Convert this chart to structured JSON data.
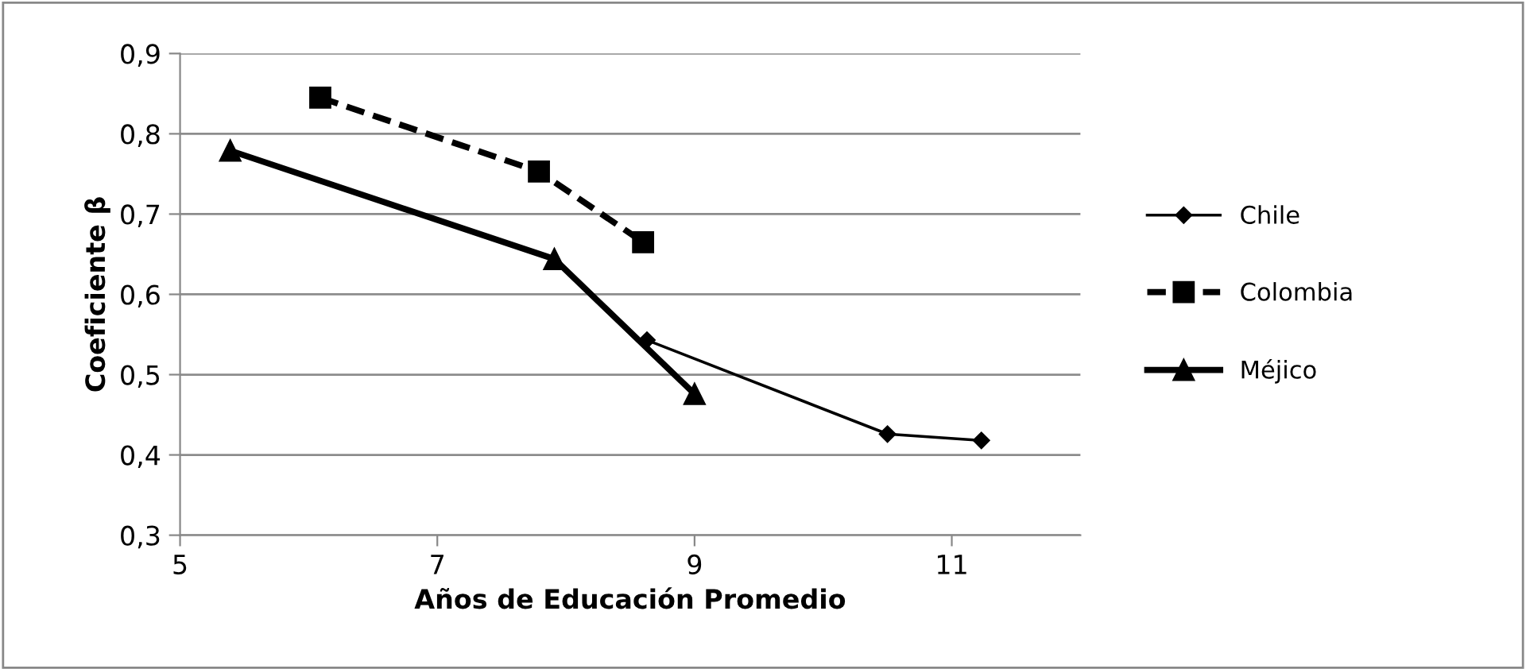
{
  "chart_data": {
    "type": "line",
    "xlabel": "Años de Educación Promedio",
    "ylabel": "Coeficiente β",
    "xlim": [
      5,
      12
    ],
    "xticks": [
      5,
      7,
      9,
      11
    ],
    "ylim": [
      0.3,
      0.9
    ],
    "yticks": [
      {
        "value": 0.3,
        "label": "0,3"
      },
      {
        "value": 0.4,
        "label": "0,4"
      },
      {
        "value": 0.5,
        "label": "0,5"
      },
      {
        "value": 0.6,
        "label": "0,6"
      },
      {
        "value": 0.7,
        "label": "0,7"
      },
      {
        "value": 0.8,
        "label": "0,8"
      },
      {
        "value": 0.9,
        "label": "0,9"
      }
    ],
    "grid": "y",
    "legend": "right",
    "series": [
      {
        "name": "Chile",
        "color": "#000000",
        "marker": "diamond",
        "line_style": "solid",
        "x": [
          8.63,
          10.5,
          11.23
        ],
        "values": [
          0.543,
          0.426,
          0.418
        ]
      },
      {
        "name": "Colombia",
        "color": "#000000",
        "marker": "square",
        "line_style": "dashed",
        "x": [
          6.09,
          7.79,
          8.6
        ],
        "values": [
          0.845,
          0.753,
          0.665
        ]
      },
      {
        "name": "Méjico",
        "color": "#000000",
        "marker": "triangle",
        "line_style": "solid",
        "x": [
          5.39,
          7.91,
          9.0
        ],
        "values": [
          0.779,
          0.644,
          0.476
        ]
      }
    ]
  }
}
